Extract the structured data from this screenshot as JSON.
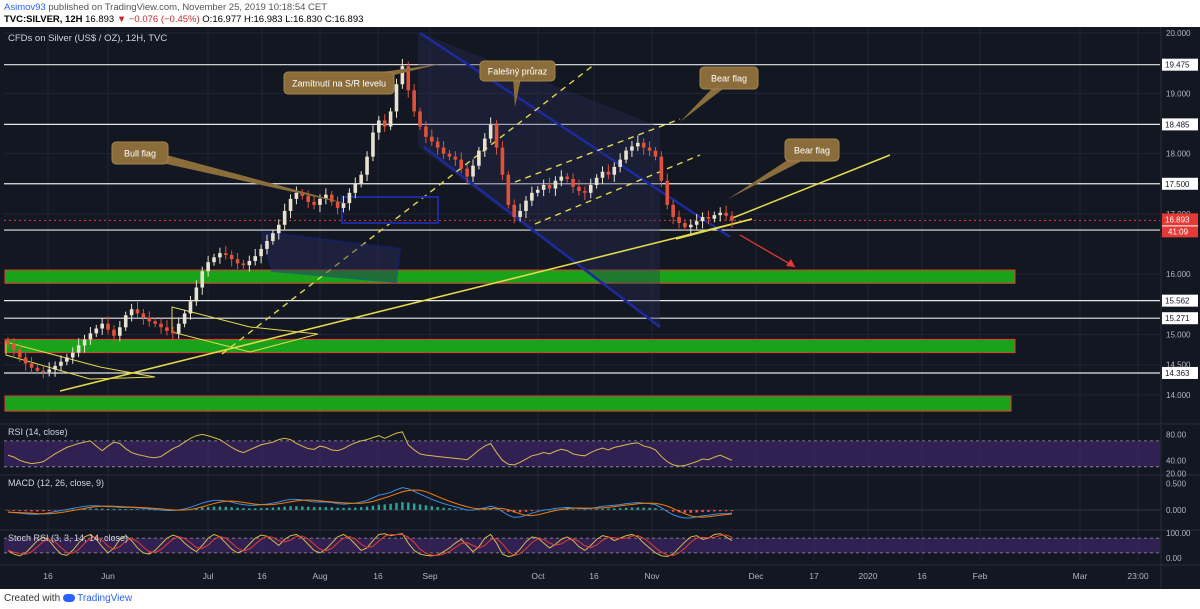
{
  "header": {
    "author": "Asimov93",
    "published_text": "published on TradingView.com, November 25, 2019 10:18:54 CET",
    "symbol": "TVC:SILVER, 12H",
    "last": "16.893",
    "change": "▼ −0.076 (−0.45%)",
    "ohlc": "O:16.977 H:16.983 L:16.830 C:16.893"
  },
  "footer": {
    "created_with": "Created with",
    "brand": "TradingView"
  },
  "chart_data": [
    {
      "type": "candlestick",
      "title": "CFDs on Silver (US$ / OZ), 12H, TVC",
      "ylim": [
        13.55,
        20.05
      ],
      "y_ticks": [
        "20.000",
        "19.000",
        "18.000",
        "17.000",
        "16.000",
        "15.000",
        "14.500",
        "14.000"
      ],
      "x_ticks": [
        "16",
        "Jun",
        "Jul",
        "16",
        "Aug",
        "16",
        "Sep",
        "Oct",
        "16",
        "Nov",
        "Dec",
        "17",
        "2020",
        "16",
        "Feb",
        "Mar",
        "23:00"
      ],
      "levels": [
        {
          "label": "19.475",
          "value": 19.475
        },
        {
          "label": "18.485",
          "value": 18.485
        },
        {
          "label": "17.500",
          "value": 17.5
        },
        {
          "label": "16.733",
          "value": 16.733
        },
        {
          "label": "15.562",
          "value": 15.562
        },
        {
          "label": "15.271",
          "value": 15.271
        },
        {
          "label": "14.363",
          "value": 14.363
        }
      ],
      "zones": [
        {
          "from": 15.85,
          "to": 16.07
        },
        {
          "from": 14.7,
          "to": 14.92
        },
        {
          "from": 13.73,
          "to": 13.98
        }
      ],
      "current_price": "16.893",
      "countdown": "41:09",
      "annotations": [
        "Zamítnutí na S/R levelu",
        "Falešný průraz",
        "Bear flag",
        "Bull flag",
        "Bear flag"
      ],
      "closes": [
        14.85,
        14.75,
        14.62,
        14.52,
        14.45,
        14.4,
        14.38,
        14.42,
        14.48,
        14.55,
        14.62,
        14.7,
        14.82,
        14.92,
        15.02,
        15.1,
        15.18,
        15.08,
        14.98,
        15.12,
        15.32,
        15.42,
        15.35,
        15.28,
        15.22,
        15.18,
        15.12,
        15.06,
        15.02,
        15.18,
        15.35,
        15.55,
        15.78,
        16.05,
        16.2,
        16.28,
        16.35,
        16.32,
        16.25,
        16.18,
        16.15,
        16.22,
        16.3,
        16.42,
        16.55,
        16.68,
        16.82,
        17.05,
        17.25,
        17.35,
        17.3,
        17.2,
        17.15,
        17.25,
        17.32,
        17.2,
        17.1,
        17.18,
        17.35,
        17.5,
        17.65,
        17.95,
        18.35,
        18.55,
        18.45,
        18.7,
        19.15,
        19.45,
        19.05,
        18.7,
        18.45,
        18.28,
        18.2,
        18.1,
        18.0,
        17.95,
        17.9,
        17.75,
        17.62,
        17.8,
        18.05,
        18.25,
        18.48,
        18.1,
        17.65,
        17.15,
        16.95,
        17.05,
        17.22,
        17.35,
        17.4,
        17.48,
        17.42,
        17.55,
        17.62,
        17.58,
        17.45,
        17.38,
        17.35,
        17.48,
        17.6,
        17.7,
        17.65,
        17.78,
        17.9,
        18.05,
        18.12,
        18.18,
        18.1,
        18.05,
        17.95,
        17.55,
        17.15,
        16.95,
        16.85,
        16.78,
        16.82,
        16.88,
        16.95,
        16.92,
        16.98,
        17.02,
        16.97,
        16.89
      ]
    },
    {
      "type": "line",
      "title": "RSI (14, close)",
      "ylim": [
        22,
        93
      ],
      "y_ticks": [
        "80.00",
        "40.00",
        "20.00"
      ],
      "bands": [
        30,
        70
      ],
      "values": [
        48,
        45,
        40,
        37,
        35,
        36,
        38,
        44,
        50,
        55,
        60,
        63,
        66,
        68,
        70,
        62,
        55,
        62,
        68,
        66,
        58,
        52,
        49,
        47,
        45,
        44,
        46,
        52,
        58,
        62,
        68,
        74,
        78,
        80,
        78,
        75,
        72,
        66,
        60,
        55,
        52,
        56,
        60,
        64,
        66,
        68,
        72,
        74,
        72,
        66,
        62,
        58,
        57,
        62,
        60,
        56,
        55,
        58,
        63,
        67,
        70,
        72,
        75,
        78,
        74,
        78,
        82,
        84,
        64,
        56,
        50,
        48,
        47,
        46,
        45,
        44,
        43,
        42,
        41,
        48,
        56,
        62,
        66,
        52,
        40,
        34,
        33,
        37,
        42,
        47,
        49,
        52,
        50,
        54,
        57,
        55,
        50,
        48,
        47,
        52,
        56,
        59,
        56,
        60,
        62,
        64,
        66,
        67,
        62,
        60,
        56,
        46,
        38,
        33,
        31,
        32,
        35,
        38,
        42,
        41,
        45,
        48,
        44,
        40
      ]
    },
    {
      "type": "line",
      "title": "MACD (12, 26, close, 9)",
      "ylim": [
        -0.32,
        0.62
      ],
      "y_ticks": [
        "0.500",
        "0.000"
      ],
      "values": [
        -0.04,
        -0.05,
        -0.06,
        -0.07,
        -0.08,
        -0.08,
        -0.07,
        -0.05,
        -0.03,
        -0.01,
        0.01,
        0.03,
        0.05,
        0.07,
        0.08,
        0.08,
        0.07,
        0.06,
        0.06,
        0.05,
        0.05,
        0.05,
        0.04,
        0.03,
        0.02,
        0.01,
        0.0,
        -0.01,
        -0.01,
        0.0,
        0.02,
        0.05,
        0.09,
        0.13,
        0.16,
        0.18,
        0.18,
        0.17,
        0.15,
        0.12,
        0.1,
        0.09,
        0.09,
        0.1,
        0.11,
        0.13,
        0.15,
        0.18,
        0.2,
        0.2,
        0.19,
        0.17,
        0.15,
        0.15,
        0.15,
        0.14,
        0.12,
        0.11,
        0.12,
        0.13,
        0.15,
        0.18,
        0.23,
        0.28,
        0.3,
        0.33,
        0.38,
        0.42,
        0.4,
        0.35,
        0.3,
        0.25,
        0.2,
        0.16,
        0.12,
        0.09,
        0.06,
        0.03,
        0.0,
        0.0,
        0.02,
        0.04,
        0.07,
        0.04,
        -0.03,
        -0.1,
        -0.14,
        -0.13,
        -0.1,
        -0.06,
        -0.03,
        0.0,
        0.01,
        0.03,
        0.04,
        0.05,
        0.04,
        0.03,
        0.02,
        0.03,
        0.05,
        0.07,
        0.08,
        0.09,
        0.1,
        0.12,
        0.13,
        0.14,
        0.13,
        0.12,
        0.1,
        0.04,
        -0.03,
        -0.09,
        -0.13,
        -0.15,
        -0.15,
        -0.13,
        -0.11,
        -0.1,
        -0.08,
        -0.07,
        -0.07,
        -0.06
      ]
    },
    {
      "type": "line",
      "title": "Stoch RSI (3, 3, 14, 14, close)",
      "ylim": [
        -5,
        105
      ],
      "y_ticks": [
        "100.00",
        "0.00"
      ],
      "bands": [
        20,
        80
      ],
      "values": [
        30,
        15,
        8,
        20,
        45,
        70,
        85,
        70,
        40,
        15,
        10,
        30,
        60,
        85,
        95,
        75,
        45,
        20,
        40,
        75,
        90,
        70,
        40,
        20,
        15,
        30,
        55,
        80,
        92,
        85,
        60,
        40,
        25,
        50,
        80,
        95,
        85,
        60,
        35,
        20,
        30,
        55,
        80,
        92,
        88,
        70,
        50,
        75,
        90,
        95,
        80,
        55,
        30,
        20,
        35,
        60,
        85,
        95,
        80,
        55,
        30,
        40,
        70,
        95,
        98,
        90,
        95,
        98,
        60,
        30,
        15,
        10,
        8,
        12,
        25,
        40,
        60,
        75,
        50,
        25,
        45,
        80,
        95,
        60,
        15,
        5,
        10,
        35,
        65,
        85,
        80,
        60,
        40,
        55,
        75,
        85,
        70,
        45,
        30,
        50,
        75,
        90,
        85,
        70,
        80,
        90,
        95,
        85,
        60,
        40,
        20,
        8,
        5,
        15,
        40,
        65,
        85,
        90,
        75,
        80,
        95,
        98,
        85,
        70
      ]
    }
  ]
}
